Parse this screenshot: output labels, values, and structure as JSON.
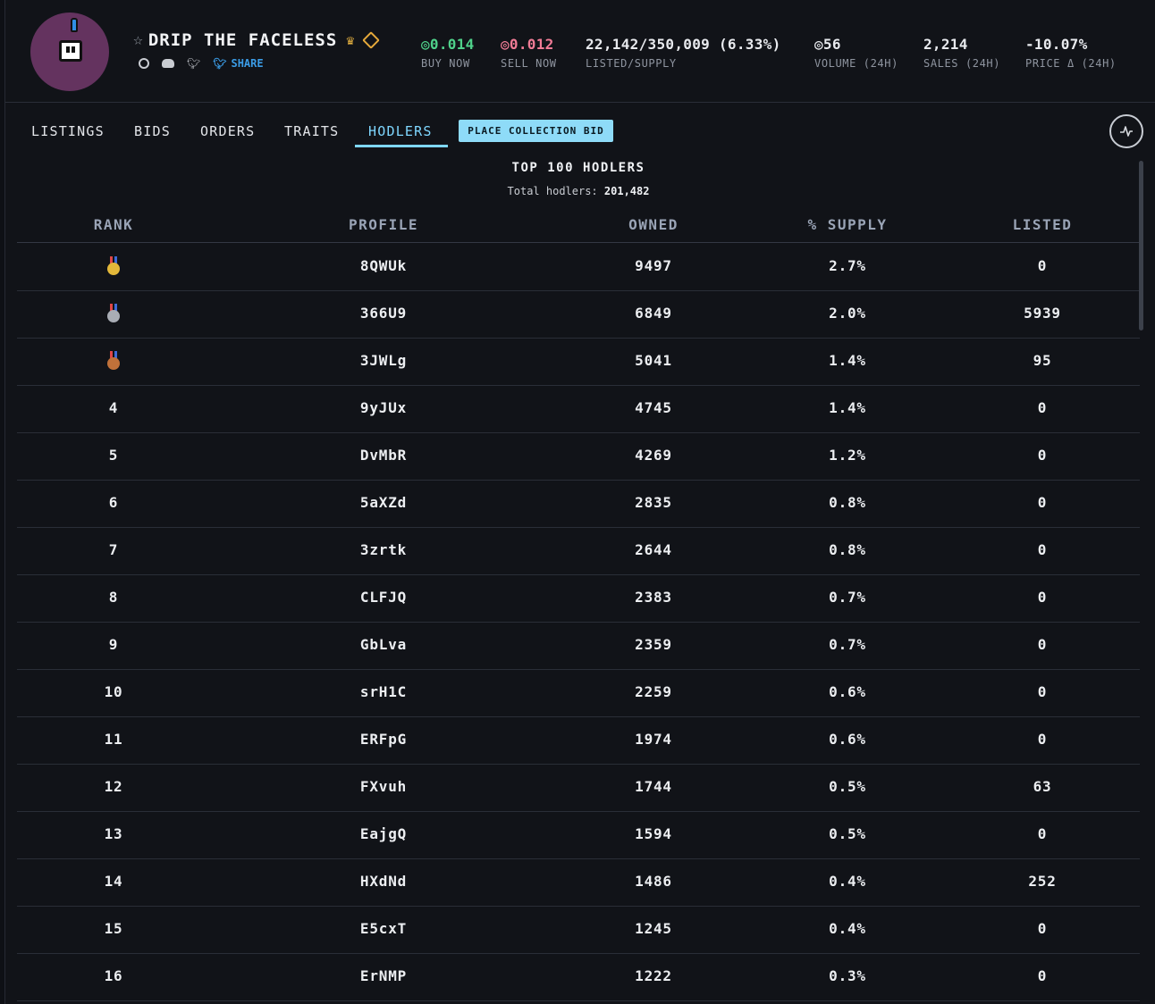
{
  "collection": {
    "name": "DRIP THE FACELESS",
    "share_label": "SHARE"
  },
  "stats": [
    {
      "value": "◎0.014",
      "label": "BUY NOW",
      "color": "#4fd18a"
    },
    {
      "value": "◎0.012",
      "label": "SELL NOW",
      "color": "#f07c96"
    },
    {
      "value": "22,142/350,009 (6.33%)",
      "label": "LISTED/SUPPLY"
    },
    {
      "value": "◎56",
      "label": "VOLUME (24H)"
    },
    {
      "value": "2,214",
      "label": "SALES (24H)"
    },
    {
      "value": "-10.07%",
      "label": "PRICE Δ (24H)"
    }
  ],
  "tabs": [
    "LISTINGS",
    "BIDS",
    "ORDERS",
    "TRAITS",
    "HODLERS"
  ],
  "active_tab": "HODLERS",
  "place_bid_label": "PLACE COLLECTION BID",
  "section": {
    "title": "TOP 100 HODLERS",
    "total_label": "Total hodlers:",
    "total_value": "201,482"
  },
  "table": {
    "headers": [
      "RANK",
      "PROFILE",
      "OWNED",
      "% SUPPLY",
      "LISTED"
    ],
    "rows": [
      {
        "rank": "gold-medal",
        "profile": "8QWUk",
        "owned": "9497",
        "supply": "2.7%",
        "listed": "0"
      },
      {
        "rank": "silver-medal",
        "profile": "366U9",
        "owned": "6849",
        "supply": "2.0%",
        "listed": "5939"
      },
      {
        "rank": "bronze-medal",
        "profile": "3JWLg",
        "owned": "5041",
        "supply": "1.4%",
        "listed": "95"
      },
      {
        "rank": "4",
        "profile": "9yJUx",
        "owned": "4745",
        "supply": "1.4%",
        "listed": "0"
      },
      {
        "rank": "5",
        "profile": "DvMbR",
        "owned": "4269",
        "supply": "1.2%",
        "listed": "0"
      },
      {
        "rank": "6",
        "profile": "5aXZd",
        "owned": "2835",
        "supply": "0.8%",
        "listed": "0"
      },
      {
        "rank": "7",
        "profile": "3zrtk",
        "owned": "2644",
        "supply": "0.8%",
        "listed": "0"
      },
      {
        "rank": "8",
        "profile": "CLFJQ",
        "owned": "2383",
        "supply": "0.7%",
        "listed": "0"
      },
      {
        "rank": "9",
        "profile": "GbLva",
        "owned": "2359",
        "supply": "0.7%",
        "listed": "0"
      },
      {
        "rank": "10",
        "profile": "srH1C",
        "owned": "2259",
        "supply": "0.6%",
        "listed": "0"
      },
      {
        "rank": "11",
        "profile": "ERFpG",
        "owned": "1974",
        "supply": "0.6%",
        "listed": "0"
      },
      {
        "rank": "12",
        "profile": "FXvuh",
        "owned": "1744",
        "supply": "0.5%",
        "listed": "63"
      },
      {
        "rank": "13",
        "profile": "EajgQ",
        "owned": "1594",
        "supply": "0.5%",
        "listed": "0"
      },
      {
        "rank": "14",
        "profile": "HXdNd",
        "owned": "1486",
        "supply": "0.4%",
        "listed": "252"
      },
      {
        "rank": "15",
        "profile": "E5cxT",
        "owned": "1245",
        "supply": "0.4%",
        "listed": "0"
      },
      {
        "rank": "16",
        "profile": "ErNMP",
        "owned": "1222",
        "supply": "0.3%",
        "listed": "0"
      }
    ]
  },
  "colors": {
    "accent": "#7fd7ff",
    "gold": "#e3b83a",
    "silver": "#a9adb5",
    "bronze": "#c0713a"
  }
}
